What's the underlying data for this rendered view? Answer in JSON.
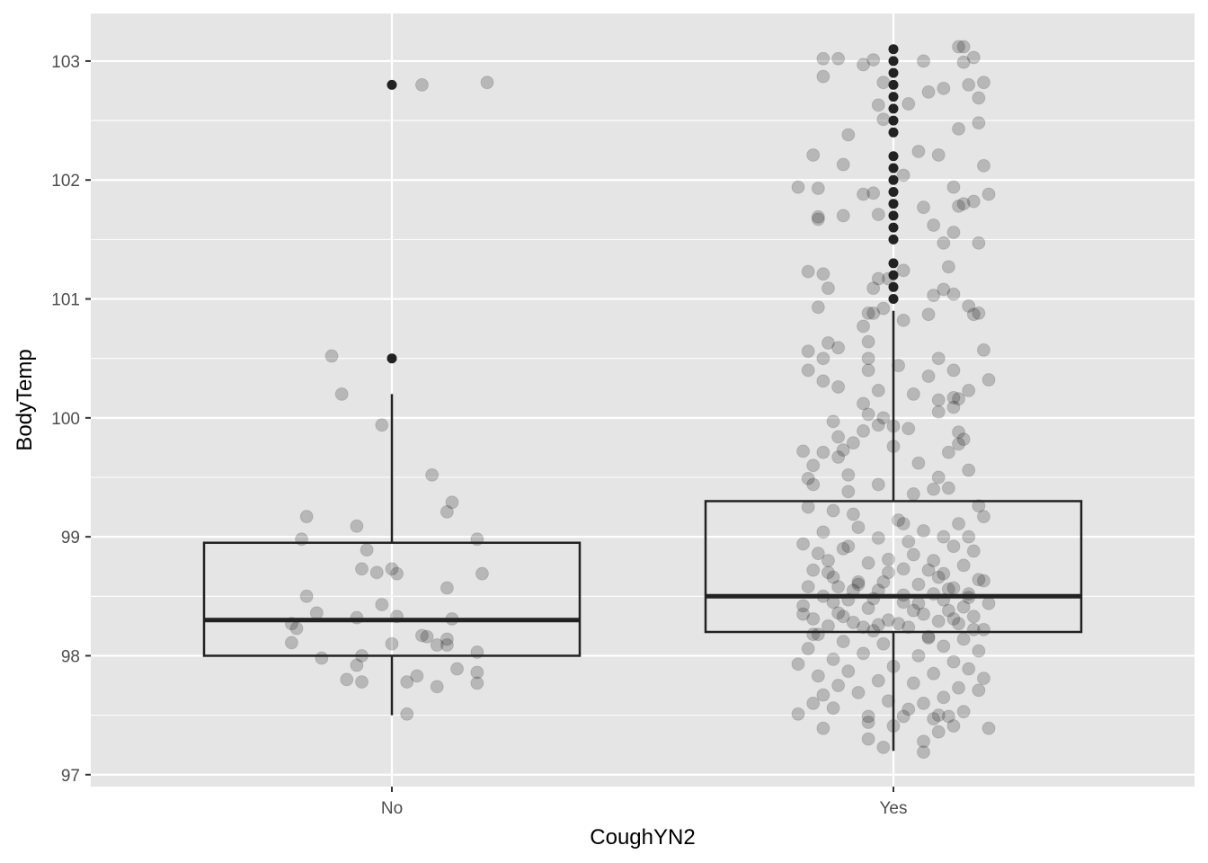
{
  "chart_data": {
    "type": "box",
    "xlabel": "CoughYN2",
    "ylabel": "BodyTemp",
    "categories": [
      "No",
      "Yes"
    ],
    "ylim": [
      96.9,
      103.4
    ],
    "yticks": [
      97,
      98,
      99,
      100,
      101,
      102,
      103
    ],
    "ytick_labels": [
      "97",
      "98",
      "99",
      "100",
      "101",
      "102",
      "103"
    ],
    "grid": true,
    "background": "#e5e5e5",
    "grid_color": "#ffffff",
    "box_color": "#222222",
    "point_color": "#000000",
    "point_alpha": 0.2,
    "boxes": [
      {
        "category": "No",
        "whisker_low": 97.5,
        "q1": 98.0,
        "median": 98.3,
        "q3": 98.95,
        "whisker_high": 100.2,
        "outliers": [
          100.5,
          102.8
        ]
      },
      {
        "category": "Yes",
        "whisker_low": 97.2,
        "q1": 98.2,
        "median": 98.5,
        "q3": 99.3,
        "whisker_high": 100.9,
        "outliers": [
          101.0,
          101.1,
          101.2,
          101.3,
          101.5,
          101.6,
          101.7,
          101.8,
          101.9,
          102.0,
          102.1,
          102.2,
          102.4,
          102.5,
          102.6,
          102.7,
          102.8,
          102.9,
          103.0,
          103.1
        ]
      }
    ],
    "jitter": {
      "No": [
        [
          -0.12,
          100.52
        ],
        [
          -0.1,
          100.2
        ],
        [
          -0.02,
          99.94
        ],
        [
          0.08,
          99.52
        ],
        [
          0.12,
          99.29
        ],
        [
          0.11,
          99.21
        ],
        [
          -0.17,
          99.17
        ],
        [
          -0.07,
          99.09
        ],
        [
          -0.18,
          98.98
        ],
        [
          0.17,
          98.98
        ],
        [
          -0.05,
          98.89
        ],
        [
          -0.06,
          98.73
        ],
        [
          -0.03,
          98.7
        ],
        [
          0.0,
          98.73
        ],
        [
          0.01,
          98.69
        ],
        [
          0.18,
          98.69
        ],
        [
          0.11,
          98.57
        ],
        [
          -0.17,
          98.5
        ],
        [
          -0.02,
          98.43
        ],
        [
          -0.15,
          98.36
        ],
        [
          -0.07,
          98.32
        ],
        [
          0.01,
          98.33
        ],
        [
          0.12,
          98.31
        ],
        [
          -0.2,
          98.27
        ],
        [
          -0.19,
          98.23
        ],
        [
          0.06,
          98.17
        ],
        [
          0.07,
          98.16
        ],
        [
          0.11,
          98.14
        ],
        [
          -0.2,
          98.11
        ],
        [
          0.0,
          98.1
        ],
        [
          0.09,
          98.09
        ],
        [
          0.11,
          98.09
        ],
        [
          0.17,
          98.03
        ],
        [
          -0.06,
          98.0
        ],
        [
          -0.14,
          97.98
        ],
        [
          -0.07,
          97.92
        ],
        [
          0.13,
          97.89
        ],
        [
          0.17,
          97.86
        ],
        [
          0.05,
          97.83
        ],
        [
          -0.09,
          97.8
        ],
        [
          -0.06,
          97.78
        ],
        [
          0.03,
          97.78
        ],
        [
          0.17,
          97.77
        ],
        [
          0.09,
          97.74
        ],
        [
          0.03,
          97.51
        ],
        [
          0.06,
          102.8
        ],
        [
          0.19,
          102.82
        ]
      ],
      "Yes": [
        [
          -0.14,
          103.02
        ],
        [
          -0.11,
          103.02
        ],
        [
          -0.04,
          103.01
        ],
        [
          -0.06,
          102.97
        ],
        [
          0.13,
          103.12
        ],
        [
          0.14,
          103.12
        ],
        [
          0.06,
          103.0
        ],
        [
          0.14,
          102.99
        ],
        [
          0.16,
          103.03
        ],
        [
          -0.14,
          102.87
        ],
        [
          -0.02,
          102.82
        ],
        [
          0.15,
          102.8
        ],
        [
          0.18,
          102.82
        ],
        [
          0.07,
          102.74
        ],
        [
          0.1,
          102.77
        ],
        [
          0.17,
          102.69
        ],
        [
          -0.03,
          102.63
        ],
        [
          0.03,
          102.64
        ],
        [
          -0.02,
          102.51
        ],
        [
          0.17,
          102.48
        ],
        [
          0.13,
          102.43
        ],
        [
          -0.09,
          102.38
        ],
        [
          -0.16,
          102.21
        ],
        [
          0.05,
          102.24
        ],
        [
          0.09,
          102.21
        ],
        [
          -0.1,
          102.13
        ],
        [
          0.18,
          102.12
        ],
        [
          0.02,
          102.04
        ],
        [
          -0.06,
          101.88
        ],
        [
          -0.04,
          101.89
        ],
        [
          -0.19,
          101.94
        ],
        [
          -0.15,
          101.93
        ],
        [
          0.12,
          101.94
        ],
        [
          0.14,
          101.8
        ],
        [
          0.16,
          101.82
        ],
        [
          0.19,
          101.88
        ],
        [
          0.13,
          101.78
        ],
        [
          0.06,
          101.77
        ],
        [
          -0.15,
          101.69
        ],
        [
          -0.15,
          101.67
        ],
        [
          -0.1,
          101.7
        ],
        [
          -0.03,
          101.71
        ],
        [
          0.08,
          101.62
        ],
        [
          0.12,
          101.56
        ],
        [
          0.1,
          101.47
        ],
        [
          0.17,
          101.47
        ],
        [
          0.11,
          101.27
        ],
        [
          -0.17,
          101.23
        ],
        [
          -0.14,
          101.21
        ],
        [
          0.02,
          101.24
        ],
        [
          -0.13,
          101.09
        ],
        [
          -0.04,
          101.09
        ],
        [
          0.1,
          101.08
        ],
        [
          0.08,
          101.03
        ],
        [
          -0.01,
          101.17
        ],
        [
          -0.03,
          101.17
        ],
        [
          0.12,
          101.04
        ],
        [
          -0.05,
          100.88
        ],
        [
          -0.04,
          100.88
        ],
        [
          0.15,
          100.94
        ],
        [
          0.17,
          100.88
        ],
        [
          0.16,
          100.87
        ],
        [
          -0.02,
          100.92
        ],
        [
          0.02,
          100.82
        ],
        [
          0.07,
          100.87
        ],
        [
          -0.15,
          100.93
        ],
        [
          -0.06,
          100.77
        ],
        [
          -0.13,
          100.63
        ],
        [
          -0.11,
          100.59
        ],
        [
          -0.17,
          100.56
        ],
        [
          0.18,
          100.57
        ],
        [
          -0.05,
          100.64
        ],
        [
          -0.14,
          100.5
        ],
        [
          -0.05,
          100.5
        ],
        [
          0.09,
          100.5
        ],
        [
          0.01,
          100.44
        ],
        [
          -0.05,
          100.4
        ],
        [
          -0.17,
          100.4
        ],
        [
          0.07,
          100.35
        ],
        [
          0.12,
          100.4
        ],
        [
          0.19,
          100.32
        ],
        [
          0.15,
          100.23
        ],
        [
          -0.14,
          100.31
        ],
        [
          -0.03,
          100.23
        ],
        [
          -0.11,
          100.26
        ],
        [
          0.04,
          100.2
        ],
        [
          0.12,
          100.17
        ],
        [
          0.13,
          100.16
        ],
        [
          0.09,
          100.15
        ],
        [
          0.09,
          100.05
        ],
        [
          0.12,
          100.09
        ],
        [
          -0.06,
          100.12
        ],
        [
          -0.02,
          100.0
        ],
        [
          -0.05,
          100.03
        ],
        [
          0.0,
          99.93
        ],
        [
          -0.03,
          99.94
        ],
        [
          0.13,
          99.88
        ],
        [
          -0.12,
          99.97
        ],
        [
          -0.06,
          99.89
        ],
        [
          0.03,
          99.91
        ],
        [
          -0.11,
          99.84
        ],
        [
          0.13,
          99.78
        ],
        [
          0.14,
          99.82
        ],
        [
          -0.08,
          99.79
        ],
        [
          -0.1,
          99.73
        ],
        [
          -0.14,
          99.71
        ],
        [
          0.0,
          99.76
        ],
        [
          0.11,
          99.71
        ],
        [
          -0.18,
          99.72
        ],
        [
          -0.16,
          99.6
        ],
        [
          -0.11,
          99.67
        ],
        [
          -0.09,
          99.52
        ],
        [
          -0.17,
          99.49
        ],
        [
          0.09,
          99.5
        ],
        [
          0.05,
          99.62
        ],
        [
          0.15,
          99.56
        ],
        [
          -0.16,
          99.44
        ],
        [
          -0.09,
          99.38
        ],
        [
          -0.03,
          99.44
        ],
        [
          0.04,
          99.36
        ],
        [
          0.08,
          99.4
        ],
        [
          0.11,
          99.41
        ],
        [
          0.17,
          99.26
        ],
        [
          -0.17,
          99.25
        ],
        [
          -0.12,
          99.22
        ],
        [
          0.01,
          99.14
        ],
        [
          0.02,
          99.11
        ],
        [
          -0.08,
          99.19
        ],
        [
          0.13,
          99.11
        ],
        [
          0.18,
          99.17
        ],
        [
          -0.14,
          99.04
        ],
        [
          -0.07,
          99.08
        ],
        [
          0.06,
          99.05
        ],
        [
          0.1,
          99.0
        ],
        [
          0.15,
          99.0
        ],
        [
          -0.03,
          98.99
        ],
        [
          -0.18,
          98.94
        ],
        [
          -0.1,
          98.9
        ],
        [
          0.12,
          98.92
        ],
        [
          0.16,
          98.88
        ],
        [
          0.04,
          98.85
        ],
        [
          -0.13,
          98.8
        ],
        [
          -0.05,
          98.78
        ],
        [
          0.08,
          98.8
        ],
        [
          0.14,
          98.76
        ],
        [
          -0.16,
          98.72
        ],
        [
          -0.01,
          98.7
        ],
        [
          0.02,
          98.73
        ],
        [
          0.1,
          98.69
        ],
        [
          -0.12,
          98.66
        ],
        [
          0.17,
          98.64
        ],
        [
          -0.07,
          98.62
        ],
        [
          0.05,
          98.6
        ],
        [
          -0.17,
          98.58
        ],
        [
          0.12,
          98.57
        ],
        [
          -0.03,
          98.55
        ],
        [
          0.08,
          98.52
        ],
        [
          -0.14,
          98.5
        ],
        [
          0.15,
          98.49
        ],
        [
          -0.09,
          98.47
        ],
        [
          0.02,
          98.45
        ],
        [
          0.19,
          98.44
        ],
        [
          -0.18,
          98.42
        ],
        [
          -0.05,
          98.4
        ],
        [
          0.11,
          98.38
        ],
        [
          -0.11,
          98.36
        ],
        [
          0.06,
          98.35
        ],
        [
          0.16,
          98.33
        ],
        [
          -0.16,
          98.31
        ],
        [
          -0.01,
          98.3
        ],
        [
          0.09,
          98.29
        ],
        [
          -0.08,
          98.28
        ],
        [
          0.13,
          98.27
        ],
        [
          -0.13,
          98.25
        ],
        [
          0.03,
          98.24
        ],
        [
          0.18,
          98.22
        ],
        [
          -0.04,
          98.21
        ],
        [
          -0.15,
          98.18
        ],
        [
          0.07,
          98.16
        ],
        [
          0.14,
          98.14
        ],
        [
          -0.1,
          98.12
        ],
        [
          -0.02,
          98.1
        ],
        [
          0.1,
          98.08
        ],
        [
          -0.17,
          98.06
        ],
        [
          0.17,
          98.04
        ],
        [
          -0.06,
          98.02
        ],
        [
          0.05,
          98.0
        ],
        [
          -0.12,
          97.97
        ],
        [
          0.12,
          97.95
        ],
        [
          -0.19,
          97.93
        ],
        [
          0.0,
          97.91
        ],
        [
          0.15,
          97.89
        ],
        [
          -0.09,
          97.87
        ],
        [
          0.08,
          97.85
        ],
        [
          -0.15,
          97.83
        ],
        [
          0.18,
          97.81
        ],
        [
          -0.03,
          97.79
        ],
        [
          0.04,
          97.77
        ],
        [
          -0.11,
          97.75
        ],
        [
          0.13,
          97.73
        ],
        [
          0.17,
          97.71
        ],
        [
          -0.07,
          97.69
        ],
        [
          -0.14,
          97.67
        ],
        [
          0.1,
          97.65
        ],
        [
          -0.01,
          97.62
        ],
        [
          -0.16,
          97.6
        ],
        [
          0.06,
          97.6
        ],
        [
          -0.12,
          97.56
        ],
        [
          0.03,
          97.55
        ],
        [
          0.14,
          97.53
        ],
        [
          -0.19,
          97.51
        ],
        [
          0.09,
          97.5
        ],
        [
          0.11,
          97.49
        ],
        [
          0.02,
          97.49
        ],
        [
          -0.05,
          97.49
        ],
        [
          0.08,
          97.47
        ],
        [
          -0.05,
          97.44
        ],
        [
          0.0,
          97.41
        ],
        [
          0.12,
          97.41
        ],
        [
          0.19,
          97.39
        ],
        [
          -0.14,
          97.39
        ],
        [
          0.09,
          97.36
        ],
        [
          -0.05,
          97.3
        ],
        [
          0.06,
          97.28
        ],
        [
          -0.02,
          97.23
        ],
        [
          0.06,
          97.19
        ],
        [
          -0.12,
          98.45
        ],
        [
          -0.08,
          98.55
        ],
        [
          -0.02,
          98.62
        ],
        [
          0.04,
          98.38
        ],
        [
          0.09,
          98.66
        ],
        [
          -0.16,
          98.18
        ],
        [
          0.02,
          98.51
        ],
        [
          -0.06,
          98.24
        ],
        [
          0.14,
          98.41
        ],
        [
          0.07,
          98.72
        ],
        [
          -0.1,
          98.33
        ],
        [
          0.16,
          98.22
        ],
        [
          -0.04,
          98.48
        ],
        [
          0.11,
          98.56
        ],
        [
          -0.13,
          98.7
        ],
        [
          0.01,
          98.27
        ],
        [
          -0.07,
          98.6
        ],
        [
          0.05,
          98.44
        ],
        [
          0.15,
          98.52
        ],
        [
          -0.18,
          98.35
        ],
        [
          -0.01,
          98.81
        ],
        [
          0.12,
          98.31
        ],
        [
          -0.09,
          98.92
        ],
        [
          0.07,
          98.15
        ],
        [
          0.03,
          98.96
        ],
        [
          -0.15,
          98.86
        ],
        [
          0.1,
          98.47
        ],
        [
          -0.11,
          98.58
        ],
        [
          0.18,
          98.63
        ],
        [
          -0.03,
          98.26
        ]
      ]
    }
  }
}
